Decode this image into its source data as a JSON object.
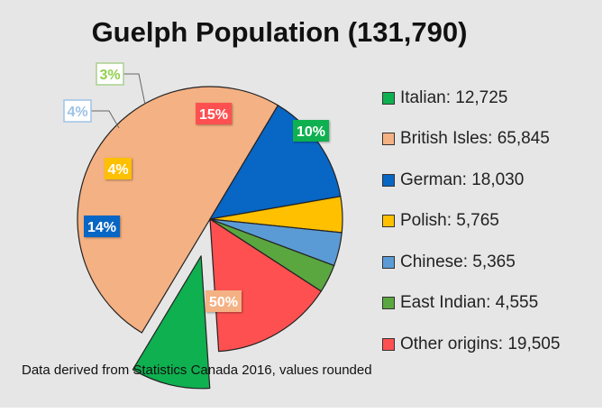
{
  "chart_data": {
    "type": "pie",
    "title": "Guelph Population (131,790)",
    "slices": [
      {
        "name": "British Isles",
        "value": 65845,
        "legend": "British Isles: 65,845",
        "label": "50%",
        "color": "#f4b183"
      },
      {
        "name": "German",
        "value": 18030,
        "legend": "German: 18,030",
        "label": "14%",
        "color": "#0866c4"
      },
      {
        "name": "Polish",
        "value": 5765,
        "legend": "Polish: 5,765",
        "label": "4%",
        "color": "#ffc000"
      },
      {
        "name": "Chinese",
        "value": 5365,
        "legend": "Chinese: 5,365",
        "label": "4%",
        "color": "#5b9bd5"
      },
      {
        "name": "East Indian",
        "value": 4555,
        "legend": "East Indian: 4,555",
        "label": "3%",
        "color": "#5aa63f"
      },
      {
        "name": "Other origins",
        "value": 19505,
        "legend": "Other origins: 19,505",
        "label": "15%",
        "color": "#fe5050"
      },
      {
        "name": "Italian",
        "value": 12725,
        "legend": "Italian: 12,725",
        "label": "10%",
        "color": "#0fb050",
        "exploded": true
      }
    ],
    "legend_order": [
      "Italian",
      "British Isles",
      "German",
      "Polish",
      "Chinese",
      "East Indian",
      "Other origins"
    ],
    "legend_position": "right"
  },
  "source_note": "Data derived from Statistics Canada 2016, values rounded"
}
